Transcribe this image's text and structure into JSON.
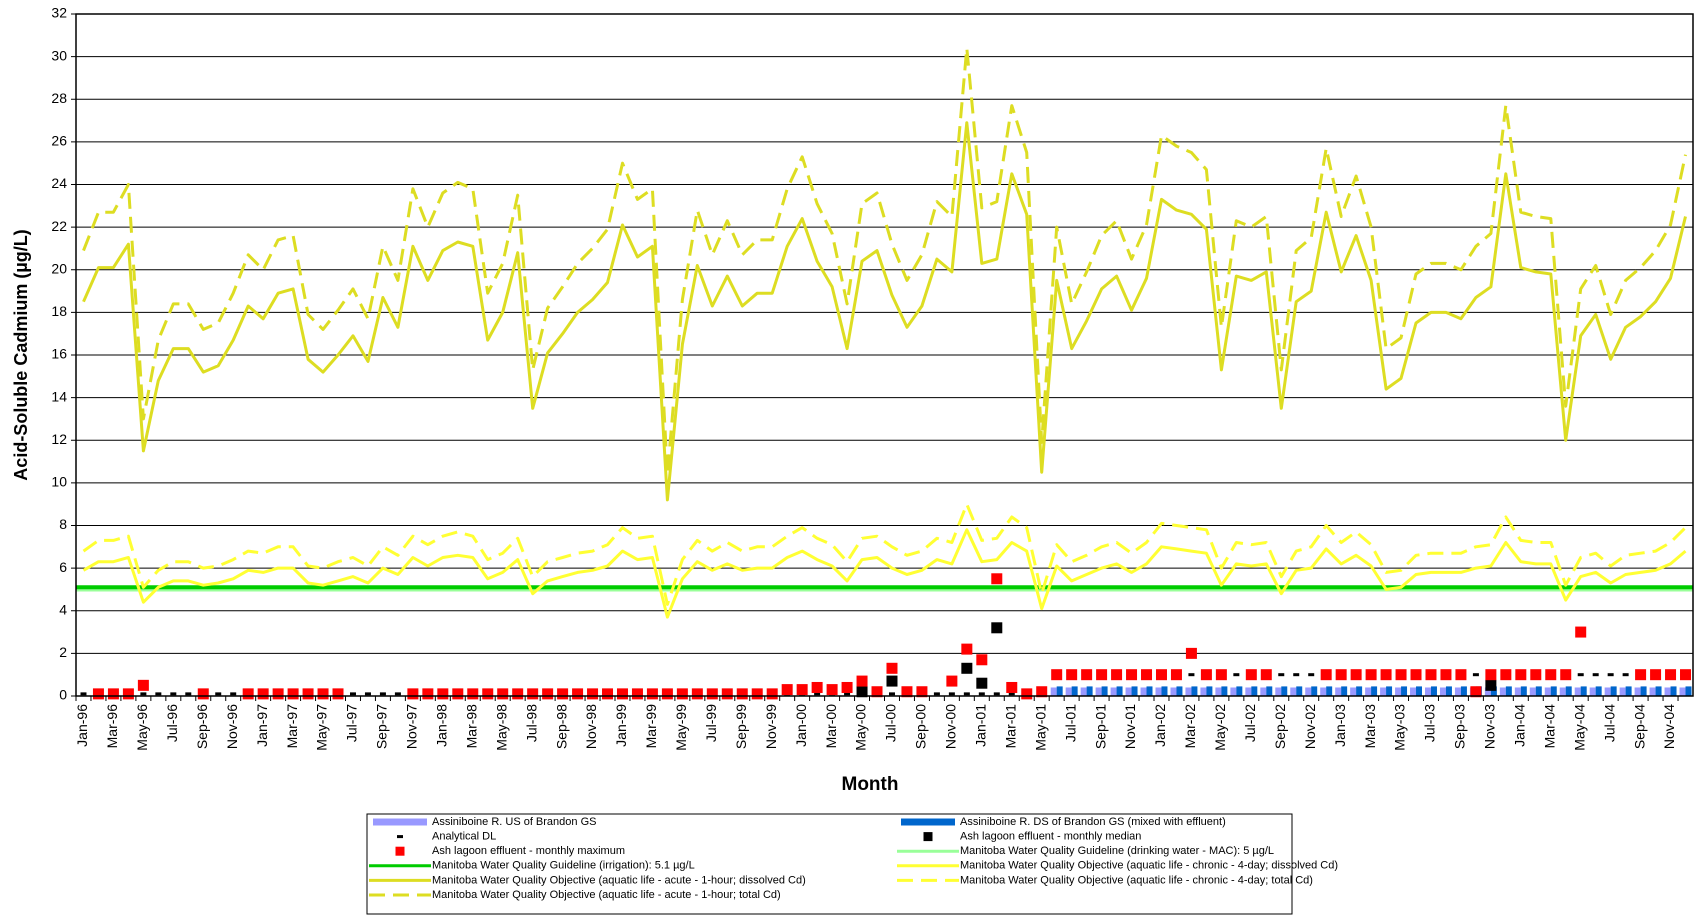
{
  "chart_data": {
    "type": "line",
    "x_label": "Month",
    "y_label": "Acid-Soluble Cadmium (µg/L)",
    "ylim": [
      0,
      32
    ],
    "yticks": [
      0,
      2,
      4,
      6,
      8,
      10,
      12,
      14,
      16,
      18,
      20,
      22,
      24,
      26,
      28,
      30,
      32
    ],
    "grid": true,
    "legend": "bottom",
    "categories": [
      "Jan-96",
      null,
      "Mar-96",
      null,
      "May-96",
      null,
      "Jul-96",
      null,
      "Sep-96",
      null,
      "Nov-96",
      null,
      "Jan-97",
      null,
      "Mar-97",
      null,
      "May-97",
      null,
      "Jul-97",
      null,
      "Sep-97",
      null,
      "Nov-97",
      null,
      "Jan-98",
      null,
      "Mar-98",
      null,
      "May-98",
      null,
      "Jul-98",
      null,
      "Sep-98",
      null,
      "Nov-98",
      null,
      "Jan-99",
      null,
      "Mar-99",
      null,
      "May-99",
      null,
      "Jul-99",
      null,
      "Sep-99",
      null,
      "Nov-99",
      null,
      "Jan-00",
      null,
      "Mar-00",
      null,
      "May-00",
      null,
      "Jul-00",
      null,
      "Sep-00",
      null,
      "Nov-00",
      null,
      "Jan-01",
      null,
      "Mar-01",
      null,
      "May-01",
      null,
      "Jul-01",
      null,
      "Sep-01",
      null,
      "Nov-01",
      null,
      "Jan-02",
      null,
      "Mar-02",
      null,
      "May-02",
      null,
      "Jul-02",
      null,
      "Sep-02",
      null,
      "Nov-02",
      null,
      "Jan-03",
      null,
      "Mar-03",
      null,
      "May-03",
      null,
      "Jul-03",
      null,
      "Sep-03",
      null,
      "Nov-03",
      null,
      "Jan-04",
      null,
      "Mar-04",
      null,
      "May-04",
      null,
      "Jul-04",
      null,
      "Sep-04",
      null,
      "Nov-04",
      null
    ],
    "series": [
      {
        "name": "Assiniboine R. US of Brandon GS",
        "style": "bar",
        "color": "#9999ff",
        "values": [
          null,
          null,
          null,
          null,
          null,
          null,
          null,
          null,
          null,
          null,
          null,
          null,
          null,
          null,
          null,
          null,
          null,
          null,
          null,
          null,
          null,
          null,
          null,
          null,
          null,
          null,
          null,
          null,
          null,
          null,
          null,
          null,
          null,
          null,
          null,
          null,
          null,
          null,
          null,
          null,
          null,
          null,
          null,
          null,
          null,
          null,
          null,
          null,
          null,
          null,
          null,
          null,
          null,
          null,
          null,
          null,
          null,
          null,
          null,
          null,
          null,
          null,
          null,
          null,
          null,
          0.4,
          0.4,
          0.4,
          0.4,
          0.4,
          0.4,
          0.4,
          0.4,
          0.4,
          0.4,
          0.4,
          0.4,
          0.4,
          0.4,
          0.4,
          0.4,
          0.4,
          0.4,
          0.4,
          0.4,
          0.4,
          0.4,
          0.4,
          0.4,
          0.4,
          0.4,
          0.4,
          0.4,
          0.4,
          0.4,
          0.4,
          0.4,
          0.4,
          0.4,
          0.4,
          0.4,
          0.4,
          0.4,
          0.4,
          0.4,
          0.4,
          0.4,
          0.4
        ]
      },
      {
        "name": "Assiniboine R. DS of Brandon GS (mixed with effluent)",
        "style": "bar",
        "color": "#0066cc",
        "values": [
          null,
          null,
          null,
          null,
          null,
          null,
          null,
          null,
          null,
          null,
          null,
          null,
          null,
          null,
          null,
          null,
          null,
          null,
          null,
          null,
          null,
          null,
          null,
          null,
          null,
          null,
          null,
          null,
          null,
          null,
          null,
          null,
          null,
          null,
          null,
          null,
          null,
          null,
          null,
          null,
          null,
          null,
          null,
          null,
          null,
          null,
          null,
          null,
          null,
          null,
          null,
          null,
          null,
          null,
          null,
          null,
          null,
          null,
          null,
          null,
          null,
          null,
          null,
          null,
          null,
          0.45,
          0.45,
          0.45,
          0.45,
          0.45,
          0.45,
          0.45,
          0.45,
          0.45,
          0.45,
          0.45,
          0.45,
          0.45,
          0.45,
          0.45,
          0.45,
          0.45,
          0.45,
          0.45,
          0.45,
          0.45,
          0.45,
          0.45,
          0.45,
          0.45,
          0.45,
          0.45,
          0.45,
          0.45,
          0.45,
          0.45,
          0.45,
          0.45,
          0.45,
          0.45,
          0.45,
          0.45,
          0.45,
          0.45,
          0.45,
          0.45,
          0.45,
          0.45
        ]
      },
      {
        "name": "Analytical DL",
        "style": "dash",
        "color": "#000000",
        "values": [
          0.1,
          0.1,
          0.1,
          0.1,
          0.1,
          0.1,
          0.1,
          0.1,
          0.1,
          0.1,
          0.1,
          0.1,
          0.1,
          0.1,
          0.1,
          0.1,
          0.1,
          0.1,
          0.1,
          0.1,
          0.1,
          0.1,
          0.1,
          0.1,
          0.1,
          0.1,
          0.1,
          0.1,
          0.1,
          0.1,
          0.1,
          0.1,
          0.1,
          0.1,
          0.1,
          0.1,
          0.1,
          0.1,
          0.1,
          0.1,
          0.1,
          0.1,
          0.1,
          0.1,
          0.1,
          0.1,
          0.1,
          0.1,
          0.1,
          0.1,
          0.1,
          0.1,
          0.1,
          0.1,
          0.1,
          0.1,
          0.1,
          0.1,
          0.1,
          0.1,
          0.1,
          0.1,
          0.1,
          0.1,
          0.1,
          1,
          1,
          1,
          1,
          1,
          1,
          1,
          1,
          1,
          1,
          1,
          1,
          1,
          1,
          1,
          1,
          1,
          1,
          1,
          1,
          1,
          1,
          1,
          1,
          1,
          1,
          1,
          1,
          1,
          1,
          1,
          1,
          1,
          1,
          1,
          1,
          1,
          1,
          1,
          1,
          1,
          1,
          1
        ]
      },
      {
        "name": "Ash lagoon effluent - monthly median",
        "style": "square",
        "color": "#000000",
        "values": [
          null,
          null,
          null,
          null,
          null,
          null,
          null,
          null,
          null,
          null,
          null,
          null,
          null,
          null,
          null,
          null,
          null,
          null,
          null,
          null,
          null,
          null,
          null,
          null,
          null,
          null,
          null,
          null,
          null,
          null,
          null,
          null,
          null,
          null,
          null,
          null,
          null,
          null,
          null,
          null,
          null,
          null,
          null,
          null,
          null,
          null,
          null,
          null,
          null,
          null,
          null,
          null,
          0.2,
          null,
          0.7,
          null,
          null,
          null,
          null,
          1.3,
          0.6,
          3.2,
          null,
          null,
          null,
          null,
          null,
          null,
          null,
          null,
          null,
          null,
          null,
          null,
          null,
          null,
          null,
          null,
          null,
          null,
          null,
          null,
          null,
          null,
          null,
          null,
          null,
          null,
          null,
          null,
          null,
          null,
          null,
          null,
          0.5,
          null,
          null,
          null,
          null,
          null,
          null,
          null,
          null,
          null,
          null,
          null,
          null,
          null
        ]
      },
      {
        "name": "Ash lagoon effluent - monthly maximum",
        "style": "square",
        "color": "#ff0000",
        "values": [
          null,
          0.1,
          0.1,
          0.1,
          0.5,
          null,
          null,
          null,
          0.1,
          null,
          null,
          0.1,
          0.1,
          0.1,
          0.1,
          0.1,
          0.1,
          0.1,
          null,
          null,
          null,
          null,
          0.1,
          0.1,
          0.1,
          0.1,
          0.1,
          0.1,
          0.1,
          0.1,
          0.1,
          0.1,
          0.1,
          0.1,
          0.1,
          0.1,
          0.1,
          0.1,
          0.1,
          0.1,
          0.1,
          0.1,
          0.1,
          0.1,
          0.1,
          0.1,
          0.1,
          0.3,
          0.3,
          0.4,
          0.3,
          0.4,
          0.7,
          0.2,
          1.3,
          0.2,
          0.2,
          null,
          0.7,
          2.2,
          1.7,
          5.5,
          0.4,
          0.1,
          0.2,
          1,
          1,
          1,
          1,
          1,
          1,
          1,
          1,
          1,
          2,
          1,
          1,
          null,
          1,
          1,
          null,
          null,
          null,
          1,
          1,
          1,
          1,
          1,
          1,
          1,
          1,
          1,
          1,
          0.2,
          1,
          1,
          1,
          1,
          1,
          1,
          3,
          null,
          null,
          null,
          1,
          1,
          1,
          1
        ]
      },
      {
        "name": "Manitoba Water Quality Guideline (drinking water - MAC): 5 µg/L",
        "style": "hline",
        "color": "#99ff99",
        "value": 5
      },
      {
        "name": "Manitoba Water Quality Guideline (irrigation): 5.1 µg/L",
        "style": "hline",
        "color": "#00cc00",
        "value": 5.1
      },
      {
        "name": "Manitoba Water Quality Objective (aquatic life - chronic - 4-day; dissolved Cd)",
        "style": "line",
        "color": "#ffff33",
        "values": [
          5.9,
          6.3,
          6.3,
          6.5,
          4.4,
          5.1,
          5.4,
          5.4,
          5.2,
          5.3,
          5.5,
          5.9,
          5.8,
          6.0,
          6.0,
          5.3,
          5.2,
          5.4,
          5.6,
          5.3,
          6.0,
          5.7,
          6.5,
          6.1,
          6.5,
          6.6,
          6.5,
          5.5,
          5.8,
          6.4,
          4.8,
          5.4,
          5.6,
          5.8,
          5.9,
          6.1,
          6.8,
          6.4,
          6.5,
          3.7,
          5.5,
          6.3,
          5.9,
          6.2,
          5.9,
          6.0,
          6.0,
          6.5,
          6.8,
          6.4,
          6.1,
          5.4,
          6.4,
          6.5,
          6.0,
          5.7,
          5.9,
          6.4,
          6.2,
          7.8,
          6.3,
          6.4,
          7.2,
          6.8,
          4.1,
          6.1,
          5.4,
          5.7,
          6.0,
          6.2,
          5.8,
          6.2,
          7.0,
          6.9,
          6.8,
          6.7,
          5.2,
          6.2,
          6.1,
          6.2,
          4.8,
          5.9,
          6.0,
          6.9,
          6.2,
          6.6,
          6.1,
          5.0,
          5.1,
          5.7,
          5.8,
          5.8,
          5.8,
          6.0,
          6.1,
          7.2,
          6.3,
          6.2,
          6.2,
          4.5,
          5.6,
          5.8,
          5.3,
          5.7,
          5.8,
          5.9,
          6.2,
          6.8
        ]
      },
      {
        "name": "Manitoba Water Quality Objective (aquatic life - acute - 1-hour; dissolved Cd)",
        "style": "line",
        "color": "#dddd22",
        "values": [
          18.5,
          20.1,
          20.1,
          21.2,
          11.5,
          14.8,
          16.3,
          16.3,
          15.2,
          15.5,
          16.7,
          18.3,
          17.7,
          18.9,
          19.1,
          15.8,
          15.2,
          16.0,
          16.9,
          15.7,
          18.7,
          17.3,
          21.1,
          19.5,
          20.9,
          21.3,
          21.1,
          16.7,
          18.0,
          20.8,
          13.5,
          16.1,
          17.0,
          18.0,
          18.6,
          19.4,
          22.1,
          20.6,
          21.1,
          9.2,
          16.5,
          20.2,
          18.3,
          19.7,
          18.3,
          18.9,
          18.9,
          21.1,
          22.4,
          20.4,
          19.2,
          16.3,
          20.4,
          20.9,
          18.8,
          17.3,
          18.3,
          20.5,
          19.9,
          26.9,
          20.3,
          20.5,
          24.5,
          22.6,
          10.5,
          19.5,
          16.3,
          17.6,
          19.1,
          19.7,
          18.1,
          19.6,
          23.3,
          22.8,
          22.6,
          21.9,
          15.3,
          19.7,
          19.5,
          19.9,
          13.5,
          18.5,
          19.0,
          22.7,
          19.9,
          21.6,
          19.5,
          14.4,
          14.9,
          17.5,
          18.0,
          18.0,
          17.7,
          18.7,
          19.2,
          24.5,
          20.1,
          19.9,
          19.8,
          12.0,
          16.9,
          17.9,
          15.8,
          17.3,
          17.8,
          18.5,
          19.6,
          22.5
        ]
      },
      {
        "name": "Manitoba Water Quality Objective (aquatic life - chronic - 4-day; total Cd)",
        "style": "dashed",
        "color": "#ffff33",
        "values": [
          6.8,
          7.3,
          7.3,
          7.5,
          5.1,
          5.9,
          6.3,
          6.3,
          6.0,
          6.1,
          6.4,
          6.8,
          6.7,
          7.0,
          7.0,
          6.1,
          6.0,
          6.3,
          6.5,
          6.1,
          7.0,
          6.6,
          7.5,
          7.1,
          7.5,
          7.7,
          7.5,
          6.4,
          6.7,
          7.4,
          5.6,
          6.3,
          6.5,
          6.7,
          6.8,
          7.1,
          7.9,
          7.4,
          7.5,
          4.3,
          6.4,
          7.3,
          6.8,
          7.2,
          6.8,
          7.0,
          7.0,
          7.5,
          7.9,
          7.4,
          7.1,
          6.3,
          7.4,
          7.5,
          7.0,
          6.6,
          6.8,
          7.4,
          7.2,
          9.0,
          7.3,
          7.4,
          8.4,
          7.9,
          4.8,
          7.1,
          6.3,
          6.6,
          7.0,
          7.2,
          6.7,
          7.2,
          8.1,
          8.0,
          7.9,
          7.8,
          6.0,
          7.2,
          7.1,
          7.2,
          5.6,
          6.8,
          7.0,
          8.0,
          7.2,
          7.7,
          7.1,
          5.8,
          5.9,
          6.6,
          6.7,
          6.7,
          6.7,
          7.0,
          7.1,
          8.4,
          7.3,
          7.2,
          7.2,
          5.2,
          6.5,
          6.7,
          6.1,
          6.6,
          6.7,
          6.8,
          7.2,
          7.9
        ]
      },
      {
        "name": "Manitoba Water Quality Objective (aquatic life - acute - 1-hour; total Cd)",
        "style": "dashed",
        "color": "#dddd22",
        "values": [
          20.9,
          22.7,
          22.7,
          24.0,
          13.0,
          16.7,
          18.4,
          18.4,
          17.2,
          17.5,
          18.9,
          20.7,
          20.0,
          21.4,
          21.6,
          17.9,
          17.2,
          18.1,
          19.1,
          17.7,
          21.1,
          19.5,
          23.8,
          22.0,
          23.6,
          24.1,
          23.8,
          18.9,
          20.3,
          23.5,
          15.3,
          18.2,
          19.2,
          20.3,
          21.0,
          21.9,
          25.0,
          23.3,
          23.8,
          10.4,
          18.6,
          22.8,
          20.7,
          22.3,
          20.7,
          21.4,
          21.4,
          23.8,
          25.3,
          23.1,
          21.7,
          18.4,
          23.1,
          23.6,
          21.2,
          19.5,
          20.7,
          23.2,
          22.5,
          30.4,
          22.9,
          23.2,
          27.7,
          25.5,
          11.9,
          22.0,
          18.4,
          19.9,
          21.6,
          22.3,
          20.5,
          22.1,
          26.3,
          25.8,
          25.5,
          24.7,
          17.3,
          22.3,
          22.0,
          22.5,
          15.3,
          20.9,
          21.5,
          25.7,
          22.5,
          24.4,
          22.0,
          16.3,
          16.8,
          19.8,
          20.3,
          20.3,
          20.0,
          21.1,
          21.7,
          27.7,
          22.7,
          22.5,
          22.4,
          13.6,
          19.1,
          20.2,
          17.9,
          19.5,
          20.1,
          20.9,
          22.1,
          25.4
        ]
      }
    ]
  }
}
